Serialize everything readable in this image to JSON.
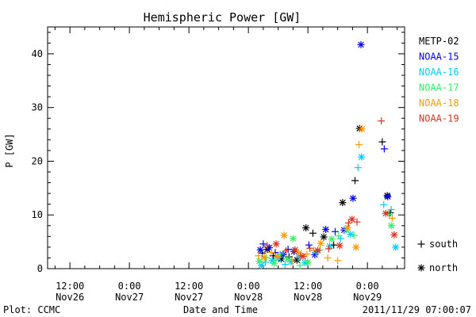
{
  "chart_data": {
    "type": "scatter",
    "title": "Hemispheric Power [GW]",
    "xlabel": "Date and Time",
    "ylabel": "P [GW]",
    "ylim": [
      0,
      45
    ],
    "y_ticks": [
      "0",
      "10",
      "20",
      "30",
      "40"
    ],
    "x_ticks": [
      {
        "x": 12,
        "time": "12:00",
        "date": "Nov26"
      },
      {
        "x": 24,
        "time": "0:00",
        "date": "Nov27"
      },
      {
        "x": 36,
        "time": "12:00",
        "date": "Nov27"
      },
      {
        "x": 48,
        "time": "0:00",
        "date": "Nov28"
      },
      {
        "x": 60,
        "time": "12:00",
        "date": "Nov28"
      },
      {
        "x": 72,
        "time": "0:00",
        "date": "Nov29"
      }
    ],
    "x_unit": "hours after 2011-11-26 00:00 UT",
    "xlim": [
      7.5,
      79.5
    ],
    "grid": false,
    "legend": {
      "placement": "right",
      "markers": [
        {
          "symbol": "+",
          "label": "south"
        },
        {
          "symbol": "*",
          "label": "north"
        }
      ]
    },
    "footer_left": "Plot: CCMC",
    "footer_right": "2011/11/29 07:00:07",
    "series": [
      {
        "name": "METP-02",
        "color": "#000000",
        "points": [
          {
            "x": 50.8,
            "y": 2.9,
            "m": "+"
          },
          {
            "x": 51.8,
            "y": 3.6,
            "m": "*"
          },
          {
            "x": 53.0,
            "y": 2.4,
            "m": "+"
          },
          {
            "x": 54.6,
            "y": 1.8,
            "m": "*"
          },
          {
            "x": 56.2,
            "y": 2.2,
            "m": "+"
          },
          {
            "x": 57.8,
            "y": 1.6,
            "m": "*"
          },
          {
            "x": 59.6,
            "y": 7.6,
            "m": "*"
          },
          {
            "x": 61.0,
            "y": 6.6,
            "m": "+"
          },
          {
            "x": 63.2,
            "y": 5.9,
            "m": "*"
          },
          {
            "x": 65.2,
            "y": 4.4,
            "m": "+"
          },
          {
            "x": 67.0,
            "y": 12.3,
            "m": "*"
          },
          {
            "x": 69.5,
            "y": 16.4,
            "m": "+"
          },
          {
            "x": 70.4,
            "y": 26.1,
            "m": "*"
          },
          {
            "x": 75.0,
            "y": 23.6,
            "m": "+"
          },
          {
            "x": 76.0,
            "y": 13.6,
            "m": "*"
          },
          {
            "x": 76.6,
            "y": 10.4,
            "m": "+"
          }
        ]
      },
      {
        "name": "NOAA-15",
        "color": "#0000ff",
        "points": [
          {
            "x": 50.4,
            "y": 3.5,
            "m": "*"
          },
          {
            "x": 51.0,
            "y": 4.6,
            "m": "+"
          },
          {
            "x": 52.2,
            "y": 3.9,
            "m": "*"
          },
          {
            "x": 53.4,
            "y": 3.0,
            "m": "+"
          },
          {
            "x": 55.0,
            "y": 2.6,
            "m": "*"
          },
          {
            "x": 56.0,
            "y": 3.6,
            "m": "+"
          },
          {
            "x": 57.2,
            "y": 3.2,
            "m": "*"
          },
          {
            "x": 58.6,
            "y": 2.4,
            "m": "+"
          },
          {
            "x": 60.2,
            "y": 4.4,
            "m": "+"
          },
          {
            "x": 61.4,
            "y": 2.6,
            "m": "*"
          },
          {
            "x": 63.6,
            "y": 7.3,
            "m": "*"
          },
          {
            "x": 65.5,
            "y": 6.9,
            "m": "+"
          },
          {
            "x": 67.3,
            "y": 7.2,
            "m": "*"
          },
          {
            "x": 69.1,
            "y": 13.1,
            "m": "*"
          },
          {
            "x": 70.7,
            "y": 41.7,
            "m": "*"
          },
          {
            "x": 75.4,
            "y": 22.3,
            "m": "+"
          },
          {
            "x": 76.1,
            "y": 13.4,
            "m": "*"
          }
        ]
      },
      {
        "name": "NOAA-16",
        "color": "#00ccff",
        "points": [
          {
            "x": 50.6,
            "y": 0.6,
            "m": "*"
          },
          {
            "x": 51.4,
            "y": 1.2,
            "m": "+"
          },
          {
            "x": 52.8,
            "y": 1.5,
            "m": "*"
          },
          {
            "x": 54.0,
            "y": 2.0,
            "m": "*"
          },
          {
            "x": 55.4,
            "y": 0.8,
            "m": "+"
          },
          {
            "x": 56.6,
            "y": 1.3,
            "m": "*"
          },
          {
            "x": 58.0,
            "y": 2.1,
            "m": "+"
          },
          {
            "x": 59.4,
            "y": 1.1,
            "m": "*"
          },
          {
            "x": 61.6,
            "y": 3.0,
            "m": "+"
          },
          {
            "x": 64.4,
            "y": 4.2,
            "m": "*"
          },
          {
            "x": 66.6,
            "y": 5.6,
            "m": "+"
          },
          {
            "x": 68.6,
            "y": 6.4,
            "m": "*"
          },
          {
            "x": 70.1,
            "y": 18.8,
            "m": "+"
          },
          {
            "x": 70.8,
            "y": 20.8,
            "m": "*"
          },
          {
            "x": 75.3,
            "y": 11.9,
            "m": "+"
          },
          {
            "x": 76.8,
            "y": 11.0,
            "m": "+"
          },
          {
            "x": 77.7,
            "y": 4.0,
            "m": "*"
          }
        ]
      },
      {
        "name": "NOAA-17",
        "color": "#33ee66",
        "points": [
          {
            "x": 50.2,
            "y": 1.4,
            "m": "*"
          },
          {
            "x": 51.6,
            "y": 2.0,
            "m": "+"
          },
          {
            "x": 53.2,
            "y": 1.0,
            "m": "*"
          },
          {
            "x": 54.4,
            "y": 2.7,
            "m": "+"
          },
          {
            "x": 55.8,
            "y": 1.8,
            "m": "*"
          },
          {
            "x": 57.0,
            "y": 5.6,
            "m": "*"
          },
          {
            "x": 58.4,
            "y": 0.6,
            "m": "+"
          },
          {
            "x": 60.0,
            "y": 1.2,
            "m": "*"
          },
          {
            "x": 62.4,
            "y": 3.5,
            "m": "+"
          },
          {
            "x": 64.8,
            "y": 5.5,
            "m": "*"
          },
          {
            "x": 66.2,
            "y": 6.1,
            "m": "+"
          },
          {
            "x": 67.8,
            "y": 7.3,
            "m": "*"
          },
          {
            "x": 69.3,
            "y": 6.2,
            "m": "+"
          },
          {
            "x": 76.4,
            "y": 10.1,
            "m": "+"
          },
          {
            "x": 76.8,
            "y": 8.0,
            "m": "*"
          }
        ]
      },
      {
        "name": "NOAA-18",
        "color": "#ff9900",
        "points": [
          {
            "x": 50.0,
            "y": 2.4,
            "m": "+"
          },
          {
            "x": 51.2,
            "y": 2.1,
            "m": "*"
          },
          {
            "x": 52.6,
            "y": 3.0,
            "m": "+"
          },
          {
            "x": 53.8,
            "y": 2.2,
            "m": "*"
          },
          {
            "x": 55.2,
            "y": 6.2,
            "m": "*"
          },
          {
            "x": 56.8,
            "y": 1.4,
            "m": "+"
          },
          {
            "x": 58.2,
            "y": 2.9,
            "m": "*"
          },
          {
            "x": 59.8,
            "y": 2.7,
            "m": "+"
          },
          {
            "x": 61.2,
            "y": 3.4,
            "m": "+"
          },
          {
            "x": 62.6,
            "y": 4.7,
            "m": "*"
          },
          {
            "x": 64.0,
            "y": 2.0,
            "m": "+"
          },
          {
            "x": 66.0,
            "y": 1.5,
            "m": "+"
          },
          {
            "x": 68.0,
            "y": 7.6,
            "m": "*"
          },
          {
            "x": 69.7,
            "y": 4.0,
            "m": "*"
          },
          {
            "x": 70.3,
            "y": 23.1,
            "m": "+"
          },
          {
            "x": 70.9,
            "y": 26.0,
            "m": "*"
          },
          {
            "x": 77.0,
            "y": 9.4,
            "m": "+"
          }
        ]
      },
      {
        "name": "NOAA-19",
        "color": "#dd3322",
        "points": [
          {
            "x": 51.8,
            "y": 4.3,
            "m": "+"
          },
          {
            "x": 53.6,
            "y": 4.6,
            "m": "*"
          },
          {
            "x": 55.6,
            "y": 3.3,
            "m": "+"
          },
          {
            "x": 57.4,
            "y": 3.5,
            "m": "*"
          },
          {
            "x": 59.0,
            "y": 2.3,
            "m": "*"
          },
          {
            "x": 60.4,
            "y": 3.8,
            "m": "+"
          },
          {
            "x": 62.0,
            "y": 3.4,
            "m": "*"
          },
          {
            "x": 64.2,
            "y": 3.7,
            "m": "+"
          },
          {
            "x": 66.4,
            "y": 4.3,
            "m": "*"
          },
          {
            "x": 68.2,
            "y": 8.5,
            "m": "+"
          },
          {
            "x": 68.9,
            "y": 9.2,
            "m": "*"
          },
          {
            "x": 69.9,
            "y": 8.7,
            "m": "+"
          },
          {
            "x": 74.8,
            "y": 27.5,
            "m": "+"
          },
          {
            "x": 75.7,
            "y": 10.3,
            "m": "*"
          },
          {
            "x": 77.4,
            "y": 6.3,
            "m": "*"
          }
        ]
      }
    ]
  }
}
